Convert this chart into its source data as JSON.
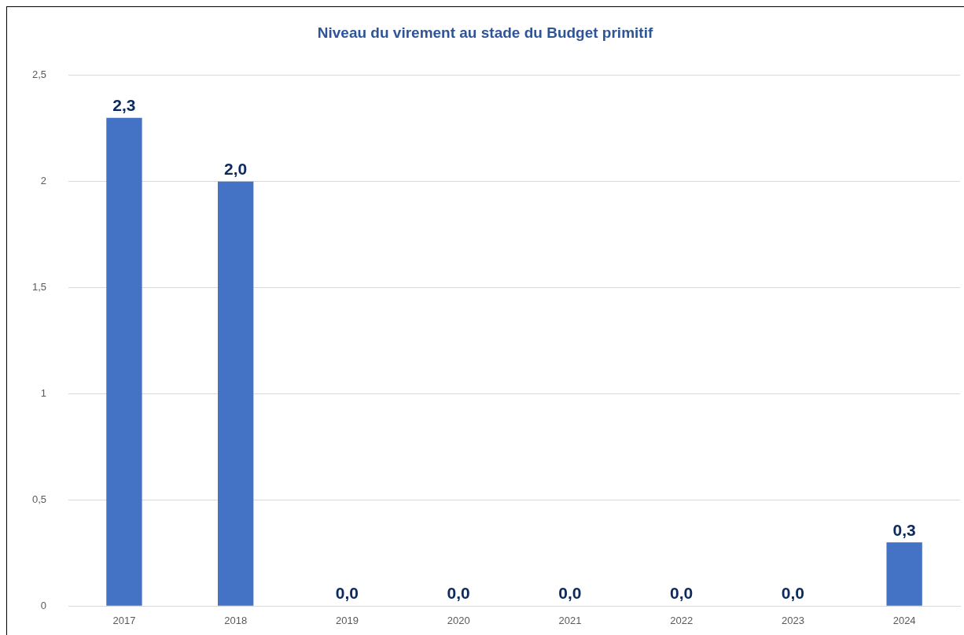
{
  "chart_data": {
    "type": "bar",
    "title": "Niveau du virement au stade du Budget primitif",
    "categories": [
      "2017",
      "2018",
      "2019",
      "2020",
      "2021",
      "2022",
      "2023",
      "2024"
    ],
    "values": [
      2.3,
      2.0,
      0.0,
      0.0,
      0.0,
      0.0,
      0.0,
      0.3
    ],
    "value_labels": [
      "2,3",
      "2,0",
      "0,0",
      "0,0",
      "0,0",
      "0,0",
      "0,0",
      "0,3"
    ],
    "color": "#4472c4",
    "ylim": [
      0,
      2.5
    ],
    "yticks": [
      0,
      {
        "value": 0.5,
        "label": "0,5"
      },
      1,
      {
        "value": 1.5,
        "label": "1,5"
      },
      2,
      {
        "value": 2.5,
        "label": "2,5"
      }
    ],
    "grid": "y",
    "legend": false
  }
}
